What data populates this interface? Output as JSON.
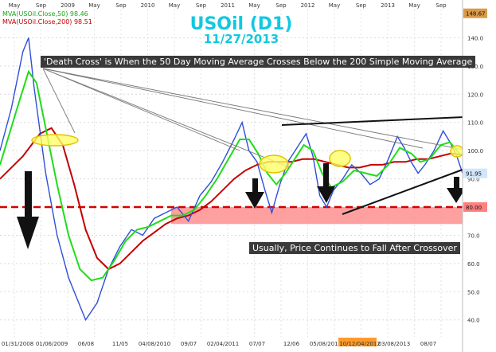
{
  "title": "USOil (D1)",
  "subtitle": "11/27/2013",
  "legend": [
    "MVA(USOil.Close,50) 98.46",
    "MVA(USOil.Close,200) 98.51"
  ],
  "annotations": {
    "top": "'Death Cross' is When the 50 Day Moving Average Crosses Below the 200 Simple Moving Average",
    "bottom": "Usually, Price Continues to Fall After Crossover"
  },
  "colors": {
    "bull": "#2244cc",
    "bear": "#cc1122",
    "ma50": "#22dd11",
    "ma200": "#cc0000",
    "zone": "#ff7a7a",
    "ellipse": "#ffff66",
    "cyan": "#12c8e0"
  },
  "chart_data": {
    "type": "line",
    "title": "USOil (D1)",
    "subtitle": "11/27/2013",
    "top_dates": [
      "May",
      "Sep",
      "2009",
      "May",
      "Sep",
      "2010",
      "May",
      "Sep",
      "2011",
      "May",
      "Sep",
      "2012",
      "May",
      "Sep",
      "2013",
      "May",
      "Sep"
    ],
    "bottom_dates": [
      "01/31/2008",
      "01/06/2009",
      "06/08",
      "11/05",
      "04/08/2010",
      "09/07",
      "02/04/2011",
      "07/07",
      "12/06",
      "05/08/2012",
      "10/12/04/2012",
      "03/08/2013",
      "08/07"
    ],
    "y_ticks": [
      40,
      50,
      60,
      70,
      80,
      90,
      100,
      110,
      120,
      130,
      140
    ],
    "ylim": [
      34,
      150
    ],
    "price_labels": [
      {
        "value": 148.67,
        "text": "148.67",
        "color": "#d99a4a"
      },
      {
        "value": 91.95,
        "text": "91.95",
        "color": "#cfe6fb"
      },
      {
        "value": 80.0,
        "text": "80.00",
        "color": "#ff8080"
      }
    ],
    "support_level": 80,
    "support_zone": [
      74,
      80
    ],
    "price_series": [
      {
        "x": 0,
        "y": 100
      },
      {
        "x": 10,
        "y": 115
      },
      {
        "x": 20,
        "y": 135
      },
      {
        "x": 25,
        "y": 140
      },
      {
        "x": 30,
        "y": 122
      },
      {
        "x": 40,
        "y": 92
      },
      {
        "x": 50,
        "y": 70
      },
      {
        "x": 60,
        "y": 55
      },
      {
        "x": 70,
        "y": 45
      },
      {
        "x": 75,
        "y": 40
      },
      {
        "x": 85,
        "y": 46
      },
      {
        "x": 95,
        "y": 58
      },
      {
        "x": 105,
        "y": 66
      },
      {
        "x": 115,
        "y": 72
      },
      {
        "x": 125,
        "y": 70
      },
      {
        "x": 135,
        "y": 76
      },
      {
        "x": 145,
        "y": 78
      },
      {
        "x": 155,
        "y": 80
      },
      {
        "x": 165,
        "y": 75
      },
      {
        "x": 175,
        "y": 84
      },
      {
        "x": 185,
        "y": 89
      },
      {
        "x": 195,
        "y": 96
      },
      {
        "x": 205,
        "y": 104
      },
      {
        "x": 212,
        "y": 110
      },
      {
        "x": 218,
        "y": 100
      },
      {
        "x": 225,
        "y": 96
      },
      {
        "x": 232,
        "y": 86
      },
      {
        "x": 238,
        "y": 78
      },
      {
        "x": 245,
        "y": 88
      },
      {
        "x": 252,
        "y": 96
      },
      {
        "x": 260,
        "y": 101
      },
      {
        "x": 268,
        "y": 106
      },
      {
        "x": 274,
        "y": 98
      },
      {
        "x": 280,
        "y": 84
      },
      {
        "x": 286,
        "y": 80
      },
      {
        "x": 292,
        "y": 86
      },
      {
        "x": 300,
        "y": 90
      },
      {
        "x": 308,
        "y": 95
      },
      {
        "x": 316,
        "y": 92
      },
      {
        "x": 324,
        "y": 88
      },
      {
        "x": 332,
        "y": 90
      },
      {
        "x": 340,
        "y": 97
      },
      {
        "x": 348,
        "y": 105
      },
      {
        "x": 354,
        "y": 101
      },
      {
        "x": 360,
        "y": 96
      },
      {
        "x": 366,
        "y": 92
      },
      {
        "x": 372,
        "y": 95
      },
      {
        "x": 380,
        "y": 100
      },
      {
        "x": 388,
        "y": 107
      },
      {
        "x": 394,
        "y": 103
      },
      {
        "x": 400,
        "y": 98
      },
      {
        "x": 405,
        "y": 92
      }
    ],
    "ma50": [
      {
        "x": 0,
        "y": 95
      },
      {
        "x": 15,
        "y": 115
      },
      {
        "x": 25,
        "y": 128
      },
      {
        "x": 32,
        "y": 124
      },
      {
        "x": 40,
        "y": 108
      },
      {
        "x": 50,
        "y": 88
      },
      {
        "x": 60,
        "y": 70
      },
      {
        "x": 70,
        "y": 58
      },
      {
        "x": 80,
        "y": 54
      },
      {
        "x": 90,
        "y": 55
      },
      {
        "x": 100,
        "y": 61
      },
      {
        "x": 110,
        "y": 68
      },
      {
        "x": 120,
        "y": 72
      },
      {
        "x": 130,
        "y": 73
      },
      {
        "x": 140,
        "y": 75
      },
      {
        "x": 150,
        "y": 77
      },
      {
        "x": 160,
        "y": 77
      },
      {
        "x": 170,
        "y": 79
      },
      {
        "x": 180,
        "y": 84
      },
      {
        "x": 190,
        "y": 90
      },
      {
        "x": 200,
        "y": 97
      },
      {
        "x": 210,
        "y": 104
      },
      {
        "x": 218,
        "y": 104
      },
      {
        "x": 226,
        "y": 99
      },
      {
        "x": 234,
        "y": 92
      },
      {
        "x": 242,
        "y": 88
      },
      {
        "x": 250,
        "y": 92
      },
      {
        "x": 258,
        "y": 97
      },
      {
        "x": 266,
        "y": 102
      },
      {
        "x": 274,
        "y": 100
      },
      {
        "x": 282,
        "y": 92
      },
      {
        "x": 290,
        "y": 87
      },
      {
        "x": 300,
        "y": 89
      },
      {
        "x": 310,
        "y": 93
      },
      {
        "x": 320,
        "y": 92
      },
      {
        "x": 330,
        "y": 91
      },
      {
        "x": 340,
        "y": 95
      },
      {
        "x": 350,
        "y": 101
      },
      {
        "x": 360,
        "y": 99
      },
      {
        "x": 368,
        "y": 96
      },
      {
        "x": 376,
        "y": 97
      },
      {
        "x": 386,
        "y": 102
      },
      {
        "x": 394,
        "y": 103
      },
      {
        "x": 402,
        "y": 99
      },
      {
        "x": 405,
        "y": 98.46
      }
    ],
    "ma200": [
      {
        "x": 0,
        "y": 90
      },
      {
        "x": 20,
        "y": 98
      },
      {
        "x": 35,
        "y": 106
      },
      {
        "x": 45,
        "y": 108
      },
      {
        "x": 55,
        "y": 102
      },
      {
        "x": 65,
        "y": 88
      },
      {
        "x": 75,
        "y": 72
      },
      {
        "x": 85,
        "y": 62
      },
      {
        "x": 95,
        "y": 58
      },
      {
        "x": 105,
        "y": 60
      },
      {
        "x": 115,
        "y": 64
      },
      {
        "x": 125,
        "y": 68
      },
      {
        "x": 135,
        "y": 71
      },
      {
        "x": 145,
        "y": 74
      },
      {
        "x": 155,
        "y": 76
      },
      {
        "x": 165,
        "y": 77
      },
      {
        "x": 175,
        "y": 79
      },
      {
        "x": 185,
        "y": 82
      },
      {
        "x": 195,
        "y": 86
      },
      {
        "x": 205,
        "y": 90
      },
      {
        "x": 215,
        "y": 93
      },
      {
        "x": 225,
        "y": 95
      },
      {
        "x": 235,
        "y": 96
      },
      {
        "x": 245,
        "y": 96
      },
      {
        "x": 255,
        "y": 96
      },
      {
        "x": 265,
        "y": 97
      },
      {
        "x": 275,
        "y": 97
      },
      {
        "x": 285,
        "y": 96
      },
      {
        "x": 295,
        "y": 95
      },
      {
        "x": 305,
        "y": 94
      },
      {
        "x": 315,
        "y": 94
      },
      {
        "x": 325,
        "y": 95
      },
      {
        "x": 335,
        "y": 95
      },
      {
        "x": 345,
        "y": 96
      },
      {
        "x": 355,
        "y": 96
      },
      {
        "x": 365,
        "y": 97
      },
      {
        "x": 375,
        "y": 97
      },
      {
        "x": 385,
        "y": 98
      },
      {
        "x": 395,
        "y": 99
      },
      {
        "x": 405,
        "y": 98.51
      }
    ]
  }
}
